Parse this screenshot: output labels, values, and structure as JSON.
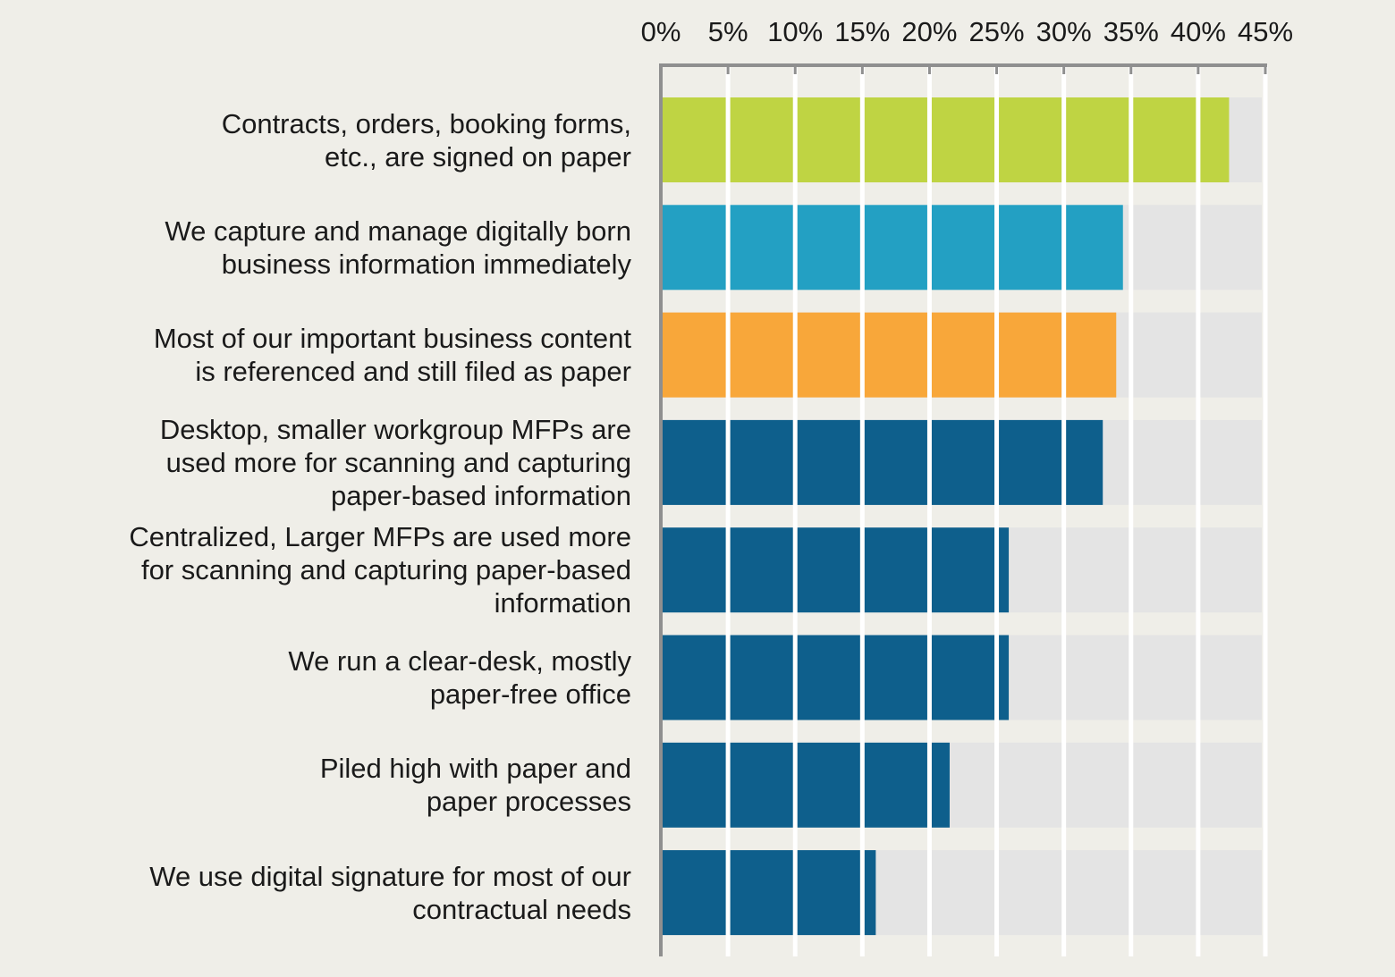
{
  "chart_data": {
    "type": "bar",
    "orientation": "horizontal",
    "title": "",
    "xlabel": "",
    "ylabel": "",
    "xlim": [
      0,
      45
    ],
    "x_ticks": [
      "0%",
      "5%",
      "10%",
      "15%",
      "20%",
      "25%",
      "30%",
      "35%",
      "40%",
      "45%"
    ],
    "x_tick_position": "top",
    "grid": true,
    "legend": "none",
    "background_color": "#efeee8",
    "track_color": "#e4e4e4",
    "categories": [
      {
        "lines": [
          "Contracts, orders, booking forms,",
          "etc., are signed on paper"
        ]
      },
      {
        "lines": [
          "We capture and manage digitally born",
          "business information immediately"
        ]
      },
      {
        "lines": [
          "Most of our important business content",
          "is referenced and still filed as paper"
        ]
      },
      {
        "lines": [
          "Desktop, smaller workgroup MFPs are",
          "used more for scanning and capturing",
          "paper-based information"
        ]
      },
      {
        "lines": [
          "Centralized, Larger MFPs are used more",
          "for scanning and capturing paper-based",
          "information"
        ]
      },
      {
        "lines": [
          "We run a clear-desk, mostly",
          "paper-free office"
        ]
      },
      {
        "lines": [
          "Piled high with paper and",
          "paper processes"
        ]
      },
      {
        "lines": [
          "We use digital signature for most of our",
          "contractual needs"
        ]
      }
    ],
    "values": [
      42.3,
      34.4,
      33.9,
      32.9,
      25.9,
      25.9,
      21.5,
      16.0
    ],
    "bar_colors": [
      "#bfd443",
      "#23a0c3",
      "#f8a73a",
      "#0e5f8c",
      "#0e5f8c",
      "#0e5f8c",
      "#0e5f8c",
      "#0e5f8c"
    ]
  }
}
